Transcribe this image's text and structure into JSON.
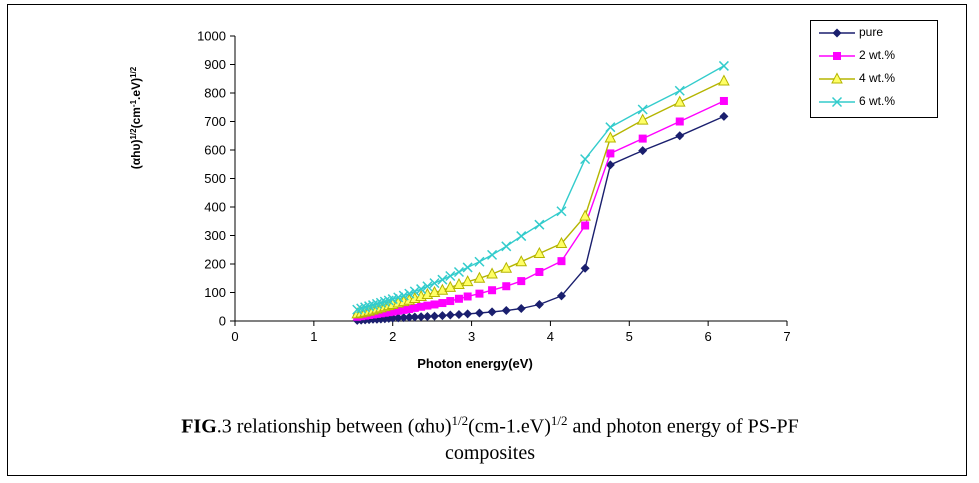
{
  "chart_data": {
    "type": "line",
    "xlabel": "Photon energy(eV)",
    "ylabel_parts": [
      "(αhυ)",
      "1/2",
      "(cm",
      "-1",
      ".eV)",
      "1/2"
    ],
    "xlim": [
      0,
      7
    ],
    "ylim": [
      0,
      1000
    ],
    "xticks": [
      "0",
      "1",
      "2",
      "3",
      "4",
      "5",
      "6",
      "7"
    ],
    "yticks": [
      "0",
      "100",
      "200",
      "300",
      "400",
      "500",
      "600",
      "700",
      "800",
      "900",
      "1000"
    ],
    "grid": false,
    "legend_position": "top-right",
    "x": [
      1.55,
      1.6,
      1.65,
      1.7,
      1.75,
      1.8,
      1.85,
      1.9,
      1.95,
      2.0,
      2.07,
      2.14,
      2.21,
      2.28,
      2.36,
      2.44,
      2.53,
      2.63,
      2.73,
      2.84,
      2.95,
      3.1,
      3.26,
      3.44,
      3.63,
      3.86,
      4.14,
      4.44,
      4.76,
      5.17,
      5.64,
      6.2
    ],
    "series": [
      {
        "name": "pure",
        "color": "#1a1f6e",
        "marker": "diamond",
        "values": [
          2,
          3,
          4,
          5,
          6,
          6,
          7,
          8,
          9,
          10,
          11,
          12,
          13,
          14,
          15,
          16,
          17,
          19,
          21,
          23,
          25,
          28,
          32,
          37,
          44,
          58,
          88,
          185,
          548,
          598,
          650,
          718
        ]
      },
      {
        "name": "2 wt.%",
        "color": "#ff00ff",
        "marker": "square",
        "values": [
          15,
          17,
          19,
          21,
          23,
          25,
          27,
          29,
          31,
          33,
          36,
          39,
          42,
          46,
          50,
          54,
          58,
          63,
          70,
          78,
          86,
          96,
          108,
          122,
          140,
          172,
          210,
          335,
          588,
          640,
          700,
          772
        ]
      },
      {
        "name": "4 wt.%",
        "color": "#b5b500",
        "marker": "triangle",
        "values": [
          25,
          28,
          31,
          34,
          38,
          42,
          46,
          50,
          54,
          58,
          63,
          68,
          73,
          79,
          86,
          93,
          100,
          108,
          118,
          128,
          138,
          150,
          165,
          185,
          208,
          237,
          272,
          368,
          642,
          705,
          768,
          842
        ]
      },
      {
        "name": "6 wt.%",
        "color": "#33cccc",
        "marker": "x",
        "values": [
          40,
          44,
          48,
          52,
          56,
          60,
          64,
          68,
          72,
          77,
          83,
          89,
          96,
          104,
          112,
          122,
          133,
          145,
          158,
          172,
          188,
          208,
          232,
          262,
          298,
          338,
          385,
          568,
          680,
          742,
          808,
          895
        ]
      }
    ]
  },
  "caption": {
    "fig_label": "FIG",
    "text_1": ".3  relationship between (αhυ)",
    "sup_1": "1/2",
    "text_2": "(cm-1.eV)",
    "sup_2": "1/2",
    "text_3": " and photon energy of  PS-PF",
    "line_2": "composites"
  }
}
